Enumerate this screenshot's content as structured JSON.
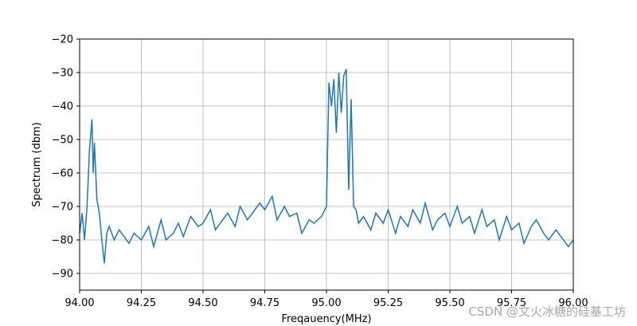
{
  "chart_data": {
    "type": "line",
    "title": "",
    "xlabel": "Freqauency(MHz)",
    "ylabel": "Spectrum (dbm)",
    "xlim": [
      94.0,
      96.0
    ],
    "ylim": [
      -95,
      -20
    ],
    "xticks": [
      94.0,
      94.25,
      94.5,
      94.75,
      95.0,
      95.25,
      95.5,
      95.75,
      96.0
    ],
    "xtick_labels": [
      "94.00",
      "94.25",
      "94.50",
      "94.75",
      "95.00",
      "95.25",
      "95.50",
      "95.75",
      "96.00"
    ],
    "yticks": [
      -90,
      -80,
      -70,
      -60,
      -50,
      -40,
      -30,
      -20
    ],
    "ytick_labels": [
      "−90",
      "−80",
      "−70",
      "−60",
      "−50",
      "−40",
      "−30",
      "−20"
    ],
    "grid": true,
    "line_color": "#1f77b4",
    "series": [
      {
        "x": [
          94.0,
          94.01,
          94.02,
          94.03,
          94.04,
          94.05,
          94.055,
          94.06,
          94.07,
          94.08,
          94.09,
          94.1,
          94.11,
          94.12,
          94.14,
          94.16,
          94.18,
          94.2,
          94.22,
          94.25,
          94.28,
          94.3,
          94.33,
          94.35,
          94.38,
          94.4,
          94.42,
          94.45,
          94.48,
          94.5,
          94.53,
          94.55,
          94.58,
          94.6,
          94.63,
          94.65,
          94.68,
          94.7,
          94.73,
          94.75,
          94.78,
          94.8,
          94.83,
          94.85,
          94.88,
          94.9,
          94.93,
          94.95,
          94.98,
          95.0,
          95.01,
          95.02,
          95.03,
          95.04,
          95.05,
          95.06,
          95.07,
          95.08,
          95.09,
          95.1,
          95.11,
          95.12,
          95.13,
          95.15,
          95.18,
          95.2,
          95.23,
          95.25,
          95.28,
          95.3,
          95.33,
          95.35,
          95.38,
          95.4,
          95.43,
          95.45,
          95.48,
          95.5,
          95.53,
          95.55,
          95.58,
          95.6,
          95.63,
          95.65,
          95.68,
          95.7,
          95.73,
          95.75,
          95.78,
          95.8,
          95.83,
          95.85,
          95.88,
          95.9,
          95.93,
          95.95,
          95.98,
          96.0
        ],
        "y": [
          -78,
          -72,
          -80,
          -70,
          -53,
          -44,
          -60,
          -51,
          -68,
          -72,
          -80,
          -87,
          -78,
          -76,
          -80,
          -77,
          -79,
          -81,
          -78,
          -80,
          -76,
          -82,
          -74,
          -80,
          -78,
          -75,
          -79,
          -73,
          -76,
          -75,
          -71,
          -77,
          -74,
          -72,
          -76,
          -70,
          -74,
          -72,
          -69,
          -71,
          -67,
          -74,
          -70,
          -73,
          -72,
          -78,
          -74,
          -75,
          -73,
          -70,
          -33,
          -40,
          -32,
          -48,
          -30,
          -42,
          -31,
          -29,
          -65,
          -38,
          -70,
          -71,
          -75,
          -73,
          -77,
          -72,
          -75,
          -71,
          -78,
          -73,
          -76,
          -71,
          -75,
          -69,
          -77,
          -74,
          -72,
          -76,
          -70,
          -75,
          -73,
          -78,
          -71,
          -76,
          -74,
          -80,
          -73,
          -77,
          -75,
          -81,
          -76,
          -74,
          -78,
          -80,
          -77,
          -79,
          -82,
          -80
        ]
      }
    ]
  },
  "watermark": "CSDN @文火冰糖的硅基工坊"
}
